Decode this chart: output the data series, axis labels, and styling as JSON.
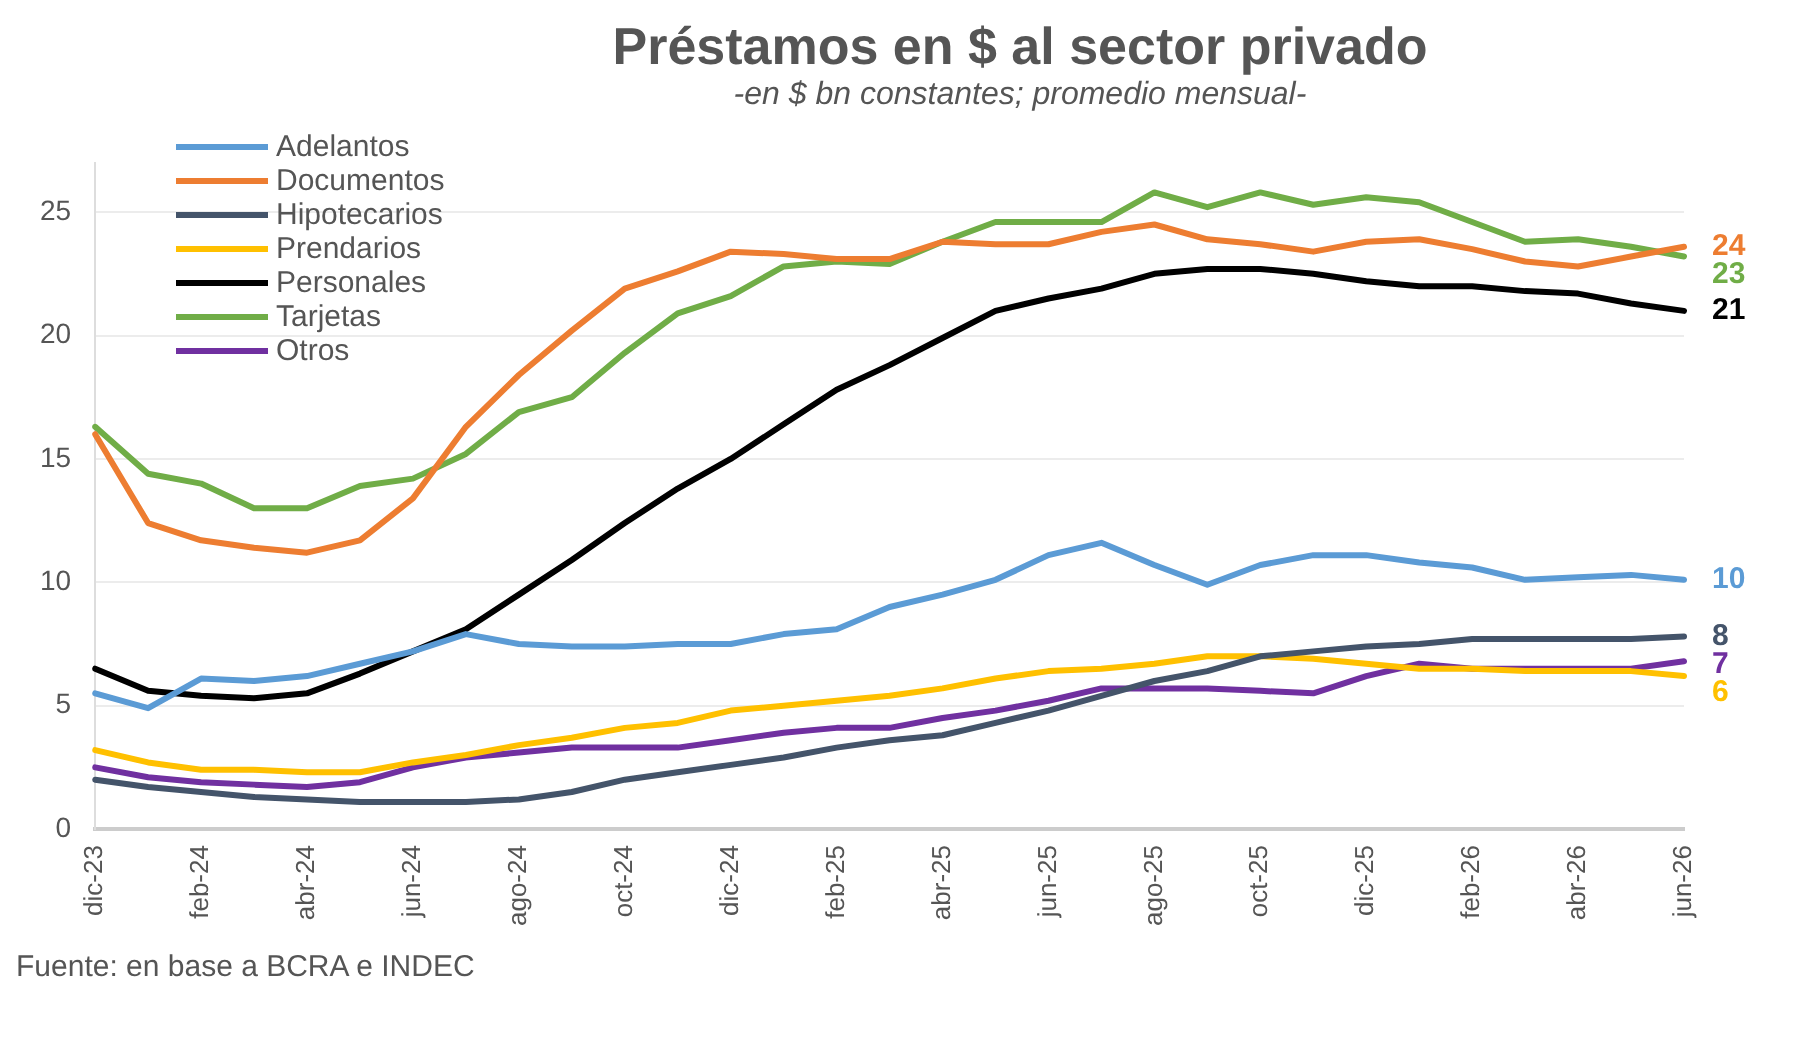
{
  "chart_data": {
    "type": "line",
    "title": "Préstamos en $ al sector privado",
    "subtitle": "-en $ bn constantes; promedio mensual-",
    "annotations": [
      "Fuente: en base a BCRA e INDEC"
    ],
    "categories": [
      "dic-23",
      null,
      "feb-24",
      null,
      "abr-24",
      null,
      "jun-24",
      null,
      "ago-24",
      null,
      "oct-24",
      null,
      "dic-24",
      null,
      "feb-25",
      null,
      "abr-25",
      null,
      "jun-25",
      null,
      "ago-25",
      null,
      "oct-25",
      null,
      "dic-25",
      null,
      "feb-26",
      null,
      "abr-26",
      null,
      "jun-26"
    ],
    "ylim": [
      0,
      27
    ],
    "yticks": [
      0,
      5,
      10,
      15,
      20,
      25
    ],
    "grid": "y",
    "legend": "top left",
    "series": [
      {
        "name": "Adelantos",
        "color": "#5b9bd5",
        "values": [
          5.5,
          4.9,
          6.1,
          6,
          6.2,
          6.7,
          7.2,
          7.9,
          7.5,
          7.4,
          7.4,
          7.5,
          7.5,
          7.9,
          8.1,
          9,
          9.5,
          10.1,
          11.1,
          11.6,
          10.7,
          9.9,
          10.7,
          11.1,
          11.1,
          10.8,
          10.6,
          10.1,
          10.2,
          10.3,
          10.1
        ],
        "value_labels": [
          null,
          null,
          null,
          null,
          null,
          null,
          null,
          null,
          null,
          null,
          null,
          null,
          null,
          null,
          null,
          null,
          null,
          null,
          null,
          null,
          null,
          null,
          null,
          null,
          null,
          null,
          null,
          null,
          null,
          null,
          "10"
        ]
      },
      {
        "name": "Documentos",
        "color": "#ed7d31",
        "values": [
          16,
          12.4,
          11.7,
          11.4,
          11.2,
          11.7,
          13.4,
          16.3,
          18.4,
          20.2,
          21.9,
          22.6,
          23.4,
          23.3,
          23.1,
          23.1,
          23.8,
          23.7,
          23.7,
          24.2,
          24.5,
          23.9,
          23.7,
          23.4,
          23.8,
          23.9,
          23.5,
          23,
          22.8,
          23.2,
          23.6
        ],
        "value_labels": [
          null,
          null,
          null,
          null,
          null,
          null,
          null,
          null,
          null,
          null,
          null,
          null,
          null,
          null,
          null,
          null,
          null,
          null,
          null,
          null,
          null,
          null,
          null,
          null,
          null,
          null,
          null,
          null,
          null,
          null,
          "24"
        ]
      },
      {
        "name": "Hipotecarios",
        "color": "#44546a",
        "values": [
          2,
          1.7,
          1.5,
          1.3,
          1.2,
          1.1,
          1.1,
          1.1,
          1.2,
          1.5,
          2,
          2.3,
          2.6,
          2.9,
          3.3,
          3.6,
          3.8,
          4.3,
          4.8,
          5.4,
          6,
          6.4,
          7,
          7.2,
          7.4,
          7.5,
          7.7,
          7.7,
          7.7,
          7.7,
          7.8
        ],
        "value_labels": [
          null,
          null,
          null,
          null,
          null,
          null,
          null,
          null,
          null,
          null,
          null,
          null,
          null,
          null,
          null,
          null,
          null,
          null,
          null,
          null,
          null,
          null,
          null,
          null,
          null,
          null,
          null,
          null,
          null,
          null,
          "8"
        ]
      },
      {
        "name": "Prendarios",
        "color": "#ffc000",
        "values": [
          3.2,
          2.7,
          2.4,
          2.4,
          2.3,
          2.3,
          2.7,
          3,
          3.4,
          3.7,
          4.1,
          4.3,
          4.8,
          5,
          5.2,
          5.4,
          5.7,
          6.1,
          6.4,
          6.5,
          6.7,
          7,
          7,
          6.9,
          6.7,
          6.5,
          6.5,
          6.4,
          6.4,
          6.4,
          6.2
        ],
        "value_labels": [
          null,
          null,
          null,
          null,
          null,
          null,
          null,
          null,
          null,
          null,
          null,
          null,
          null,
          null,
          null,
          null,
          null,
          null,
          null,
          null,
          null,
          null,
          null,
          null,
          null,
          null,
          null,
          null,
          null,
          null,
          "6"
        ]
      },
      {
        "name": "Personales",
        "color": "#000000",
        "values": [
          6.5,
          5.6,
          5.4,
          5.3,
          5.5,
          6.3,
          7.2,
          8.1,
          9.5,
          10.9,
          12.4,
          13.8,
          15,
          16.4,
          17.8,
          18.8,
          19.9,
          21,
          21.5,
          21.9,
          22.5,
          22.7,
          22.7,
          22.5,
          22.2,
          22,
          22,
          21.8,
          21.7,
          21.3,
          21
        ],
        "value_labels": [
          null,
          null,
          null,
          null,
          null,
          null,
          null,
          null,
          null,
          null,
          null,
          null,
          null,
          null,
          null,
          null,
          null,
          null,
          null,
          null,
          null,
          null,
          null,
          null,
          null,
          null,
          null,
          null,
          null,
          null,
          "21"
        ]
      },
      {
        "name": "Tarjetas",
        "color": "#70ad47",
        "values": [
          16.3,
          14.4,
          14,
          13,
          13,
          13.9,
          14.2,
          15.2,
          16.9,
          17.5,
          19.3,
          20.9,
          21.6,
          22.8,
          23,
          22.9,
          23.8,
          24.6,
          24.6,
          24.6,
          25.8,
          25.2,
          25.8,
          25.3,
          25.6,
          25.4,
          24.6,
          23.8,
          23.9,
          23.6,
          23.2
        ],
        "value_labels": [
          null,
          null,
          null,
          null,
          null,
          null,
          null,
          null,
          null,
          null,
          null,
          null,
          null,
          null,
          null,
          null,
          null,
          null,
          null,
          null,
          null,
          null,
          null,
          null,
          null,
          null,
          null,
          null,
          null,
          null,
          "23"
        ]
      },
      {
        "name": "Otros",
        "color": "#7030a0",
        "values": [
          2.5,
          2.1,
          1.9,
          1.8,
          1.7,
          1.9,
          2.5,
          2.9,
          3.1,
          3.3,
          3.3,
          3.3,
          3.6,
          3.9,
          4.1,
          4.1,
          4.5,
          4.8,
          5.2,
          5.7,
          5.7,
          5.7,
          5.6,
          5.5,
          6.2,
          6.7,
          6.5,
          6.5,
          6.5,
          6.5,
          6.8
        ],
        "value_labels": [
          null,
          null,
          null,
          null,
          null,
          null,
          null,
          null,
          null,
          null,
          null,
          null,
          null,
          null,
          null,
          null,
          null,
          null,
          null,
          null,
          null,
          null,
          null,
          null,
          null,
          null,
          null,
          null,
          null,
          null,
          "7"
        ]
      }
    ]
  }
}
